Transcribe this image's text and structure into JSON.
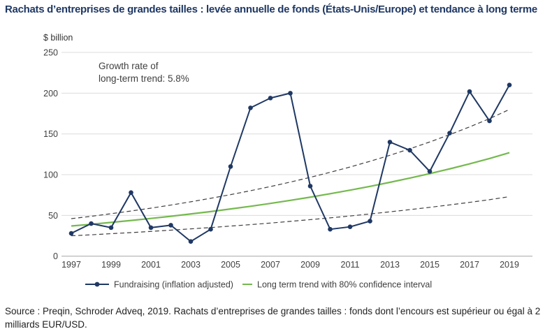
{
  "title": "Rachats d’entreprises de grandes tailles : levée annuelle de fonds (États-Unis/Europe) et tendance à long terme",
  "source": "Source : Preqin, Schroder Adveq, 2019. Rachats d’entreprises de grandes tailles : fonds dont l’encours est supérieur ou égal à 2 milliards EUR/USD.",
  "colors": {
    "title": "#1f3864",
    "navy": "#1f3864",
    "green": "#74b94e",
    "dashed": "#3f3f3f",
    "grid": "#dcdcdc",
    "axis": "#a6a6a6",
    "tick_text": "#404040"
  },
  "chart_data": {
    "type": "line",
    "unit_label": "$ billion",
    "annotation": {
      "line1": "Growth rate of",
      "line2": "long-term trend: 5.8%"
    },
    "x": [
      1997,
      1998,
      1999,
      2000,
      2001,
      2002,
      2003,
      2004,
      2005,
      2006,
      2007,
      2008,
      2009,
      2010,
      2011,
      2012,
      2013,
      2014,
      2015,
      2016,
      2017,
      2018,
      2019
    ],
    "series": [
      {
        "name": "Fundraising (inflation adjusted)",
        "style": "solid-markers",
        "values": [
          28,
          40,
          35,
          78,
          35,
          38,
          18,
          33,
          110,
          182,
          194,
          200,
          86,
          33,
          36,
          43,
          140,
          130,
          104,
          151,
          202,
          166,
          210
        ]
      },
      {
        "name": "Long term trend",
        "style": "solid-green",
        "values": [
          37,
          39.1,
          41.4,
          43.8,
          46.3,
          48.9,
          51.8,
          54.7,
          57.9,
          61.2,
          64.7,
          68.5,
          72.4,
          76.6,
          81,
          85.6,
          90.6,
          95.8,
          101.3,
          107.1,
          113.3,
          119.8,
          127
        ]
      },
      {
        "name": "80% confidence interval upper bound",
        "style": "dashed",
        "values": [
          46,
          48.9,
          52.1,
          55.4,
          58.9,
          62.7,
          66.7,
          71,
          75.5,
          80.3,
          85.4,
          90.9,
          96.7,
          102.9,
          109.4,
          116.4,
          123.8,
          131.7,
          140.1,
          149.1,
          158.6,
          168.7,
          180
        ]
      },
      {
        "name": "80% confidence interval lower bound",
        "style": "dashed",
        "values": [
          25,
          26.2,
          27.6,
          28.9,
          30.4,
          31.9,
          33.5,
          35.1,
          36.9,
          38.7,
          40.6,
          42.7,
          44.8,
          47,
          49.3,
          51.8,
          54.4,
          57.1,
          59.9,
          62.9,
          66,
          69.3,
          73
        ]
      }
    ],
    "ylim": [
      0,
      250
    ],
    "yticks": [
      0,
      50,
      100,
      150,
      200,
      250
    ],
    "xticks": [
      1997,
      1999,
      2001,
      2003,
      2005,
      2007,
      2009,
      2011,
      2013,
      2015,
      2017,
      2019
    ],
    "grid": "horizontal",
    "legend": {
      "position": "bottom",
      "fundraising_label": "Fundraising (inflation adjusted)",
      "trend_label": "Long term trend with 80% confidence interval"
    }
  }
}
